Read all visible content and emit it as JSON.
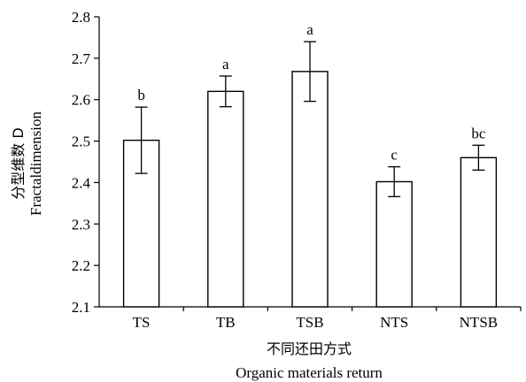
{
  "chart_data": {
    "type": "bar",
    "categories": [
      "TS",
      "TB",
      "TSB",
      "NTS",
      "NTSB"
    ],
    "values": [
      2.502,
      2.62,
      2.668,
      2.402,
      2.46
    ],
    "errors": [
      0.08,
      0.037,
      0.072,
      0.036,
      0.03
    ],
    "significance": [
      "b",
      "a",
      "a",
      "c",
      "bc"
    ],
    "xlabel": "不同还田方式",
    "xlabel_en": "Organic materials return",
    "ylabel": "分型维数 D",
    "ylabel_en": "Fractaldimension",
    "ylim": [
      2.1,
      2.8
    ],
    "yticks": [
      "2.1",
      "2.2",
      "2.3",
      "2.4",
      "2.5",
      "2.6",
      "2.7",
      "2.8"
    ],
    "grid": false,
    "legend": "none",
    "colors": {
      "bar_fill": "#ffffff",
      "bar_stroke": "#000000",
      "axis": "#000000"
    }
  }
}
